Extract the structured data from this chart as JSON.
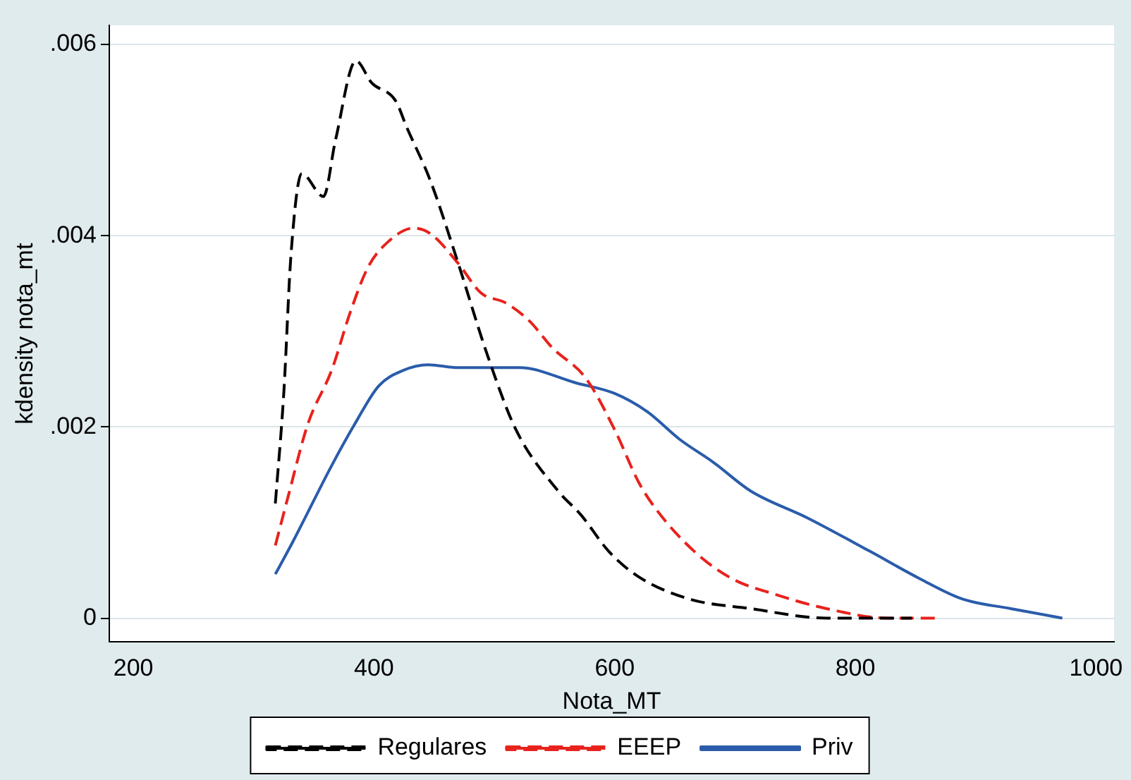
{
  "chart_data": {
    "type": "line",
    "xlabel": "Nota_MT",
    "ylabel": "kdensity nota_mt",
    "xlim": [
      180,
      1015
    ],
    "ylim": [
      -0.00025,
      0.0062
    ],
    "xticks": [
      200,
      400,
      600,
      800,
      1000
    ],
    "yticks": [
      {
        "value": 0,
        "label": "0"
      },
      {
        "value": 0.002,
        "label": ".002"
      },
      {
        "value": 0.004,
        "label": ".004"
      },
      {
        "value": 0.006,
        "label": ".006"
      }
    ],
    "grid": "y",
    "legend": "bottom",
    "marker": "none",
    "series": [
      {
        "name": "Regulares",
        "color": "#000000",
        "line_style": "dashed",
        "x": [
          318,
          325,
          331,
          340,
          358,
          368,
          385,
          398,
          418,
          427,
          447,
          470,
          494,
          518,
          553,
          572,
          595,
          619,
          662,
          713,
          776,
          847
        ],
        "values": [
          0.0012,
          0.00235,
          0.0038,
          0.00465,
          0.00441,
          0.005,
          0.00583,
          0.0056,
          0.00541,
          0.00514,
          0.00457,
          0.00371,
          0.00276,
          0.00197,
          0.00133,
          0.00108,
          0.0007,
          0.00044,
          0.0002,
          0.0001,
          0,
          0
        ]
      },
      {
        "name": "EEEP",
        "color": "#e8221c",
        "line_style": "dashed",
        "x": [
          318,
          329,
          345,
          365,
          380,
          395,
          412,
          433,
          447,
          470,
          489,
          509,
          529,
          548,
          576,
          600,
          620,
          635,
          666,
          698,
          733,
          776,
          827,
          866
        ],
        "values": [
          0.00076,
          0.00129,
          0.00203,
          0.0026,
          0.00319,
          0.00367,
          0.00394,
          0.00408,
          0.00402,
          0.00371,
          0.0034,
          0.0033,
          0.00311,
          0.00283,
          0.00251,
          0.00197,
          0.00142,
          0.00113,
          0.0007,
          0.00041,
          0.00025,
          0.0001,
          0,
          0
        ]
      },
      {
        "name": "Priv",
        "color": "#2a5caa",
        "line_style": "solid",
        "x": [
          318,
          333,
          365,
          384,
          404,
          424,
          445,
          470,
          521,
          568,
          600,
          627,
          654,
          682,
          713,
          760,
          812,
          854,
          889,
          929,
          972
        ],
        "values": [
          0.00046,
          0.00081,
          0.0016,
          0.00203,
          0.00243,
          0.00259,
          0.00265,
          0.00262,
          0.00262,
          0.00246,
          0.00235,
          0.00216,
          0.00187,
          0.00163,
          0.00133,
          0.00105,
          0.0007,
          0.00041,
          0.0002,
          0.0001,
          0
        ]
      }
    ]
  }
}
